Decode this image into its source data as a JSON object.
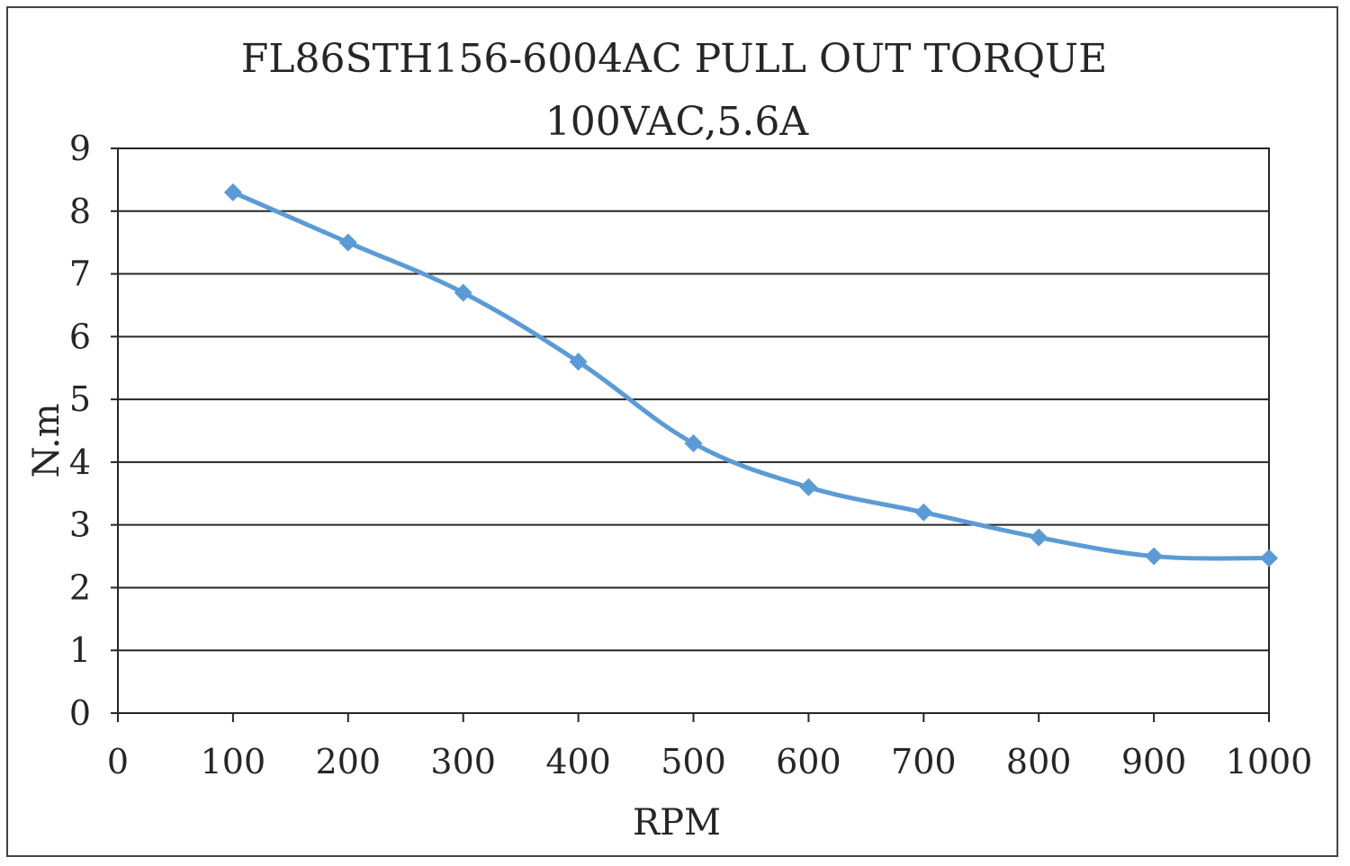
{
  "chart_data": {
    "type": "line",
    "title": "FL86STH156-6004AC PULL OUT TORQUE",
    "subtitle": "100VAC,5.6A",
    "xlabel": "RPM",
    "ylabel": "N.m",
    "xlim": [
      0,
      1000
    ],
    "ylim": [
      0,
      9
    ],
    "x_ticks": [
      "0",
      "100",
      "200",
      "300",
      "400",
      "500",
      "600",
      "700",
      "800",
      "900",
      "1000"
    ],
    "y_ticks": [
      "0",
      "1",
      "2",
      "3",
      "4",
      "5",
      "6",
      "7",
      "8",
      "9"
    ],
    "grid": true,
    "smooth": true,
    "marker": "diamond",
    "series_color": "#5B9BD5",
    "series": [
      {
        "x": [
          100,
          200,
          300,
          400,
          500,
          600,
          700,
          800,
          900,
          1000
        ],
        "values": [
          8.3,
          7.5,
          6.7,
          5.6,
          4.3,
          3.6,
          3.2,
          2.8,
          2.5,
          2.47
        ]
      }
    ]
  }
}
